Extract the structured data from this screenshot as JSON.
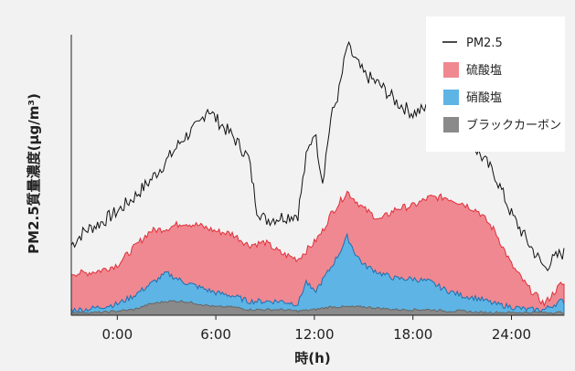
{
  "chart_data": {
    "type": "area",
    "xlabel": "時(h)",
    "ylabel": "PM2.5質量濃度(μg/m³)",
    "x_ticks": [
      "0:00",
      "6:00",
      "12:00",
      "18:00",
      "24:00"
    ],
    "x_tick_values": [
      0,
      6,
      12,
      18,
      24
    ],
    "xlim": [
      -2.8,
      27.2
    ],
    "ylim": [
      0,
      100
    ],
    "legend_position": "top-right",
    "colors": {
      "pm25": "#111111",
      "sulfate_fill": "#f08891",
      "sulfate_edge": "#e0303a",
      "nitrate_fill": "#5eb4e4",
      "nitrate_edge": "#1e6fb0",
      "black_carbon": "#8a8a8a",
      "background": "#f2f2f2",
      "legend_bg": "#ffffff"
    },
    "series": [
      {
        "name": "PM2.5",
        "x": [
          -2.8,
          -2,
          -1,
          0,
          1,
          2,
          3,
          4,
          5,
          5.5,
          6,
          7,
          8,
          8.5,
          9,
          10,
          11,
          11.5,
          12,
          12.5,
          13,
          13.5,
          14,
          15,
          16,
          17,
          18,
          19,
          20,
          21,
          22,
          23,
          24,
          25,
          26,
          27
        ],
        "values": [
          25,
          30,
          33,
          37,
          42,
          48,
          55,
          63,
          68,
          74,
          70,
          64,
          56,
          38,
          34,
          35,
          36,
          56,
          66,
          48,
          70,
          80,
          96,
          86,
          82,
          76,
          72,
          74,
          70,
          65,
          58,
          50,
          36,
          26,
          17,
          22
        ]
      },
      {
        "name": "硫酸塩",
        "x": [
          -2.8,
          -2,
          -1,
          0,
          1,
          2,
          3,
          4,
          5,
          6,
          7,
          8,
          9,
          10,
          11,
          12,
          12.5,
          13,
          14,
          15,
          16,
          17,
          18,
          19,
          20,
          21,
          22,
          23,
          24,
          25,
          26,
          27
        ],
        "values": [
          15,
          15,
          16,
          18,
          24,
          30,
          31,
          33,
          32,
          30,
          29,
          25,
          26,
          22,
          20,
          26,
          30,
          36,
          44,
          38,
          34,
          38,
          39,
          42,
          42,
          40,
          37,
          30,
          18,
          10,
          4,
          11
        ]
      },
      {
        "name": "硝酸塩",
        "x": [
          -2.8,
          -2,
          -1,
          0,
          1,
          2,
          3,
          4,
          5,
          6,
          7,
          8,
          9,
          10,
          11,
          11.5,
          12,
          13,
          13.5,
          14,
          14.5,
          15,
          16,
          17,
          18,
          19,
          20,
          21,
          22,
          23,
          24,
          25,
          26,
          27
        ],
        "values": [
          2,
          2,
          3,
          4,
          7,
          11,
          15,
          12,
          10,
          8,
          7,
          5,
          5,
          5,
          4,
          12,
          8,
          17,
          22,
          28,
          22,
          18,
          15,
          13,
          13,
          12,
          9,
          7,
          6,
          4,
          3,
          2,
          2,
          5
        ]
      },
      {
        "name": "ブラックカーボン",
        "x": [
          -2.8,
          -2,
          -1,
          0,
          1,
          2,
          3,
          4,
          5,
          6,
          7,
          8,
          9,
          10,
          11,
          12,
          13,
          14,
          15,
          16,
          17,
          18,
          19,
          20,
          21,
          22,
          23,
          24,
          25,
          26,
          27
        ],
        "values": [
          1,
          1,
          1,
          1.5,
          2,
          4,
          5,
          5,
          4,
          3,
          3,
          2,
          2,
          2,
          1.5,
          2,
          3,
          3,
          3,
          2.5,
          2,
          2,
          2,
          1.5,
          1.5,
          1,
          1,
          1,
          1,
          1,
          1
        ]
      }
    ]
  }
}
